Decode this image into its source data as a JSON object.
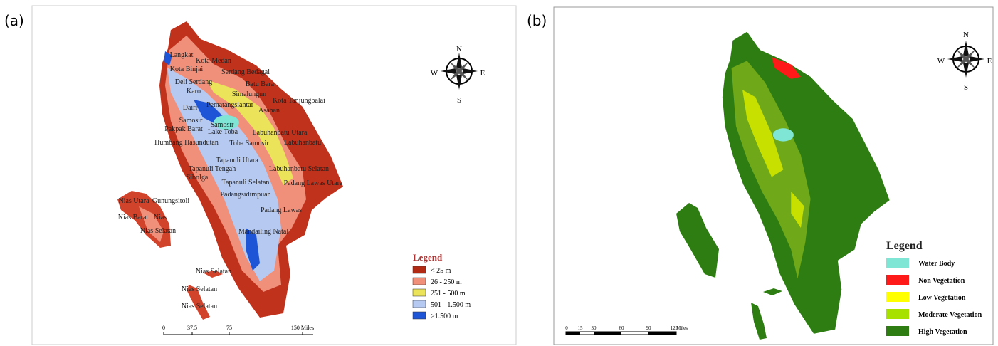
{
  "panel_a": {
    "label": "(a)",
    "regions": [
      "Langkat",
      "Kota Medan",
      "Kota Binjai",
      "Serdang Bedagai",
      "Batu Bara",
      "Deli Serdang",
      "Karo",
      "Simalungun",
      "Pematangsiantar",
      "Kota Tanjungbalai",
      "Asahan",
      "Dairi",
      "Samosir",
      "Samosir",
      "Lake Toba",
      "Pakpak Barat",
      "Labuhanbatu Utara",
      "Humbang Hasundutan",
      "Toba Samosir",
      "Labuhanbatu",
      "Tapanuli Utara",
      "Tapanuli Tengah",
      "Labuhanbatu Selatan",
      "Sibolga",
      "Tapanuli Selatan",
      "Padang Lawas Utara",
      "Padangsidimpuan",
      "Nias Utara",
      "Gunungsitoli",
      "Nias Barat",
      "Nias",
      "Nias Selatan",
      "Padang Lawas",
      "Mandailing Natal",
      "Nias Selatan",
      "Nias Selatan",
      "Nias Selatan"
    ],
    "compass": {
      "n": "N",
      "e": "E",
      "s": "S",
      "w": "W"
    },
    "legend": {
      "title": "Legend",
      "items": [
        {
          "label": "< 25 m",
          "color": "#b22a14"
        },
        {
          "label": "26 - 250 m",
          "color": "#f08f7a"
        },
        {
          "label": "251 - 500 m",
          "color": "#ebe35a"
        },
        {
          "label": "501 - 1.500 m",
          "color": "#b6c9f0"
        },
        {
          "label": ">1.500 m",
          "color": "#1e54d6"
        }
      ]
    },
    "scale": [
      "0",
      "37.5",
      "75",
      "150 Miles"
    ]
  },
  "panel_b": {
    "label": "(b)",
    "compass": {
      "n": "N",
      "e": "E",
      "s": "S",
      "w": "W"
    },
    "legend": {
      "title": "Legend",
      "items": [
        {
          "label": "Water Body",
          "color": "#7fe5d5"
        },
        {
          "label": "Non Vegetation",
          "color": "#ff1a1a"
        },
        {
          "label": "Low Vegetation",
          "color": "#ffff00"
        },
        {
          "label": "Moderate Vegetation",
          "color": "#a8e000"
        },
        {
          "label": "High Vegetation",
          "color": "#2e7d12"
        }
      ]
    },
    "scale": [
      "0",
      "15",
      "30",
      "60",
      "90",
      "120",
      "Miles"
    ]
  }
}
